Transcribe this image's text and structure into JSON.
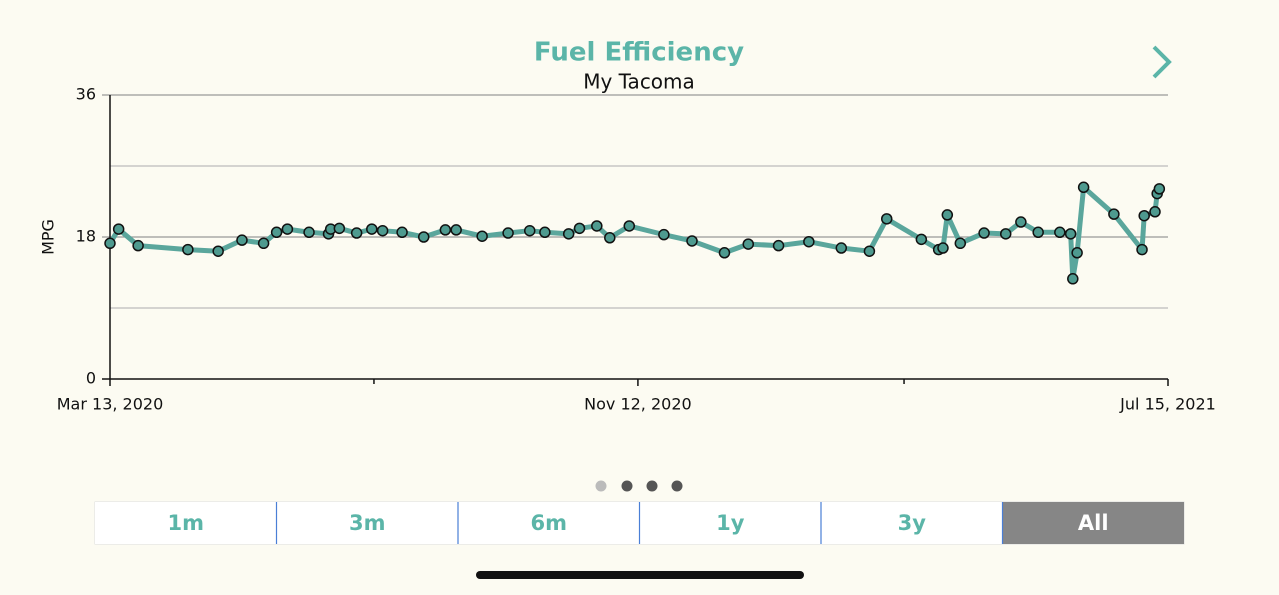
{
  "chart_data": {
    "type": "line",
    "title": "Fuel Efficiency",
    "subtitle": "My Tacoma",
    "y_label": "MPG",
    "x": [
      "2020-03-13",
      "2020-03-17",
      "2020-03-26",
      "2020-04-18",
      "2020-05-02",
      "2020-05-13",
      "2020-05-23",
      "2020-05-29",
      "2020-06-03",
      "2020-06-13",
      "2020-06-22",
      "2020-06-23",
      "2020-06-27",
      "2020-07-05",
      "2020-07-12",
      "2020-07-17",
      "2020-07-26",
      "2020-08-05",
      "2020-08-15",
      "2020-08-20",
      "2020-09-01",
      "2020-09-13",
      "2020-09-23",
      "2020-09-30",
      "2020-10-11",
      "2020-10-16",
      "2020-10-24",
      "2020-10-30",
      "2020-11-08",
      "2020-11-24",
      "2020-12-07",
      "2020-12-22",
      "2021-01-02",
      "2021-01-16",
      "2021-01-30",
      "2021-02-14",
      "2021-02-27",
      "2021-03-07",
      "2021-03-23",
      "2021-03-31",
      "2021-04-02",
      "2021-04-04",
      "2021-04-10",
      "2021-04-21",
      "2021-05-01",
      "2021-05-08",
      "2021-05-16",
      "2021-05-26",
      "2021-05-31",
      "2021-06-01",
      "2021-06-03",
      "2021-06-06",
      "2021-06-20",
      "2021-07-03",
      "2021-07-04",
      "2021-07-09",
      "2021-07-10",
      "2021-07-11"
    ],
    "series": [
      {
        "color": "#5aa69c",
        "values": [
          17.2,
          19.0,
          16.9,
          16.4,
          16.2,
          17.6,
          17.2,
          18.6,
          19.0,
          18.6,
          18.4,
          19.0,
          19.1,
          18.5,
          19.0,
          18.8,
          18.6,
          18.0,
          18.9,
          18.9,
          18.1,
          18.5,
          18.8,
          18.6,
          18.4,
          19.1,
          19.4,
          17.9,
          19.4,
          18.3,
          17.5,
          16.0,
          17.1,
          16.9,
          17.4,
          16.6,
          16.2,
          20.3,
          17.7,
          16.4,
          16.6,
          20.8,
          17.2,
          18.5,
          18.4,
          19.9,
          18.6,
          18.6,
          18.4,
          12.7,
          16.0,
          24.3,
          20.9,
          16.4,
          20.7,
          21.2,
          23.5,
          24.1
        ]
      }
    ],
    "xlim": [
      "2020-03-13",
      "2021-07-15"
    ],
    "xticks": [
      {
        "value": "2020-03-13",
        "label": "Mar 13, 2020"
      },
      {
        "value": "2020-11-12",
        "label": "Nov 12, 2020"
      },
      {
        "value": "2021-07-15",
        "label": "Jul 15, 2021"
      }
    ],
    "xminor": [
      "2020-07-13",
      "2021-03-15"
    ],
    "ylim": [
      0,
      36
    ],
    "yticks": [
      0,
      18,
      36
    ],
    "yminor": [
      9,
      27
    ],
    "grid": true
  },
  "segments": [
    "1m",
    "3m",
    "6m",
    "1y",
    "3y",
    "All"
  ],
  "selected": 5
}
